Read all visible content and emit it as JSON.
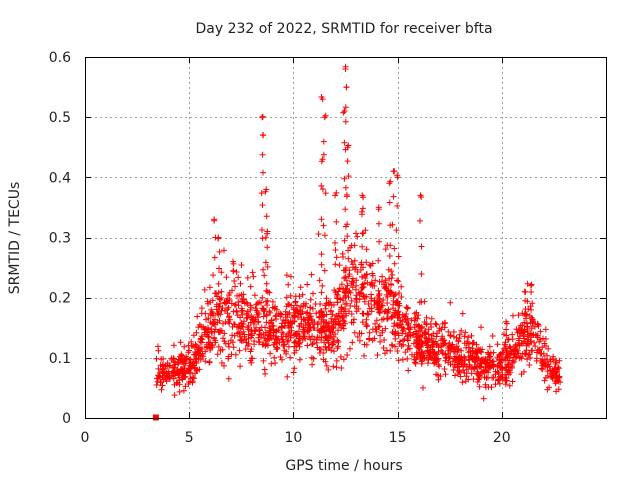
{
  "chart_data": {
    "type": "scatter",
    "title": "Day 232 of 2022, SRMTID for receiver bfta",
    "xlabel": "GPS time / hours",
    "ylabel": "SRMTID / TECUs",
    "xlim": [
      0,
      25
    ],
    "ylim": [
      0,
      0.6
    ],
    "x_ticks": [
      0,
      5,
      10,
      15,
      20
    ],
    "x_tick_labels": [
      "0",
      "5",
      "10",
      "15",
      "20"
    ],
    "y_ticks": [
      0,
      0.1,
      0.2,
      0.3,
      0.4,
      0.5,
      0.6
    ],
    "y_tick_labels": [
      "0",
      "0.1",
      "0.2",
      "0.3",
      "0.4",
      "0.5",
      "0.6"
    ],
    "grid": true,
    "marker": "plus",
    "color": "#ff0000",
    "outlier_marker": {
      "x": 3.4,
      "y": 0.0,
      "shape": "square"
    },
    "hourly_profile": [
      {
        "x": 3.4,
        "y": 0.07
      },
      {
        "x": 4.0,
        "y": 0.08
      },
      {
        "x": 4.5,
        "y": 0.08
      },
      {
        "x": 5.0,
        "y": 0.09
      },
      {
        "x": 5.5,
        "y": 0.11
      },
      {
        "x": 6.0,
        "y": 0.15
      },
      {
        "x": 6.5,
        "y": 0.16
      },
      {
        "x": 7.0,
        "y": 0.17
      },
      {
        "x": 7.5,
        "y": 0.16
      },
      {
        "x": 8.0,
        "y": 0.16
      },
      {
        "x": 8.5,
        "y": 0.15
      },
      {
        "x": 9.0,
        "y": 0.14
      },
      {
        "x": 9.5,
        "y": 0.14
      },
      {
        "x": 10.0,
        "y": 0.15
      },
      {
        "x": 10.5,
        "y": 0.15
      },
      {
        "x": 11.0,
        "y": 0.15
      },
      {
        "x": 11.5,
        "y": 0.14
      },
      {
        "x": 12.0,
        "y": 0.15
      },
      {
        "x": 12.5,
        "y": 0.21
      },
      {
        "x": 13.0,
        "y": 0.21
      },
      {
        "x": 13.5,
        "y": 0.2
      },
      {
        "x": 14.0,
        "y": 0.18
      },
      {
        "x": 14.5,
        "y": 0.2
      },
      {
        "x": 15.0,
        "y": 0.16
      },
      {
        "x": 15.5,
        "y": 0.14
      },
      {
        "x": 16.0,
        "y": 0.13
      },
      {
        "x": 16.5,
        "y": 0.12
      },
      {
        "x": 17.0,
        "y": 0.11
      },
      {
        "x": 17.5,
        "y": 0.11
      },
      {
        "x": 18.0,
        "y": 0.1
      },
      {
        "x": 18.5,
        "y": 0.1
      },
      {
        "x": 19.0,
        "y": 0.09
      },
      {
        "x": 19.5,
        "y": 0.08
      },
      {
        "x": 20.0,
        "y": 0.09
      },
      {
        "x": 20.5,
        "y": 0.1
      },
      {
        "x": 21.0,
        "y": 0.13
      },
      {
        "x": 21.5,
        "y": 0.14
      },
      {
        "x": 22.0,
        "y": 0.1
      },
      {
        "x": 22.5,
        "y": 0.07
      },
      {
        "x": 22.8,
        "y": 0.07
      }
    ],
    "peaks": [
      {
        "x": 6.2,
        "y": 0.33
      },
      {
        "x": 6.4,
        "y": 0.3
      },
      {
        "x": 7.1,
        "y": 0.26
      },
      {
        "x": 8.5,
        "y": 0.5
      },
      {
        "x": 8.55,
        "y": 0.47
      },
      {
        "x": 8.7,
        "y": 0.38
      },
      {
        "x": 8.75,
        "y": 0.31
      },
      {
        "x": 11.4,
        "y": 0.53
      },
      {
        "x": 11.5,
        "y": 0.5
      },
      {
        "x": 11.4,
        "y": 0.43
      },
      {
        "x": 12.5,
        "y": 0.58
      },
      {
        "x": 12.55,
        "y": 0.55
      },
      {
        "x": 12.45,
        "y": 0.51
      },
      {
        "x": 12.6,
        "y": 0.45
      },
      {
        "x": 12.0,
        "y": 0.37
      },
      {
        "x": 13.3,
        "y": 0.37
      },
      {
        "x": 14.1,
        "y": 0.35
      },
      {
        "x": 14.6,
        "y": 0.39
      },
      {
        "x": 14.8,
        "y": 0.41
      },
      {
        "x": 15.0,
        "y": 0.4
      },
      {
        "x": 16.1,
        "y": 0.37
      },
      {
        "x": 21.1,
        "y": 0.21
      },
      {
        "x": 21.4,
        "y": 0.22
      },
      {
        "x": 20.2,
        "y": 0.16
      }
    ],
    "note": "Approximately 2000 scattered samples between 3.4 h and 22.8 h; individual points are generated around hourly_profile (approximate mean SRMTID per time) with spread up to the listed peaks."
  }
}
